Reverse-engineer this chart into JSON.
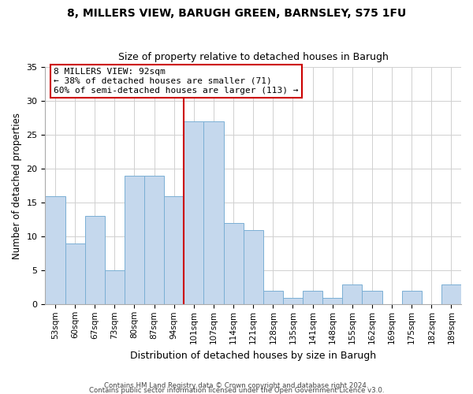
{
  "title1": "8, MILLERS VIEW, BARUGH GREEN, BARNSLEY, S75 1FU",
  "title2": "Size of property relative to detached houses in Barugh",
  "xlabel": "Distribution of detached houses by size in Barugh",
  "ylabel": "Number of detached properties",
  "bin_labels": [
    "53sqm",
    "60sqm",
    "67sqm",
    "73sqm",
    "80sqm",
    "87sqm",
    "94sqm",
    "101sqm",
    "107sqm",
    "114sqm",
    "121sqm",
    "128sqm",
    "135sqm",
    "141sqm",
    "148sqm",
    "155sqm",
    "162sqm",
    "169sqm",
    "175sqm",
    "182sqm",
    "189sqm"
  ],
  "bar_values": [
    16,
    9,
    13,
    5,
    19,
    19,
    16,
    27,
    27,
    12,
    11,
    2,
    1,
    2,
    1,
    3,
    2,
    0,
    2,
    0,
    3
  ],
  "bar_color": "#c5d8ed",
  "bar_edge_color": "#7aafd4",
  "vline_x_idx": 6,
  "vline_color": "#cc0000",
  "annotation_title": "8 MILLERS VIEW: 92sqm",
  "annotation_line1": "← 38% of detached houses are smaller (71)",
  "annotation_line2": "60% of semi-detached houses are larger (113) →",
  "annotation_box_color": "#ffffff",
  "annotation_box_edge": "#cc0000",
  "ylim": [
    0,
    35
  ],
  "yticks": [
    0,
    5,
    10,
    15,
    20,
    25,
    30,
    35
  ],
  "footer1": "Contains HM Land Registry data © Crown copyright and database right 2024.",
  "footer2": "Contains public sector information licensed under the Open Government Licence v3.0."
}
